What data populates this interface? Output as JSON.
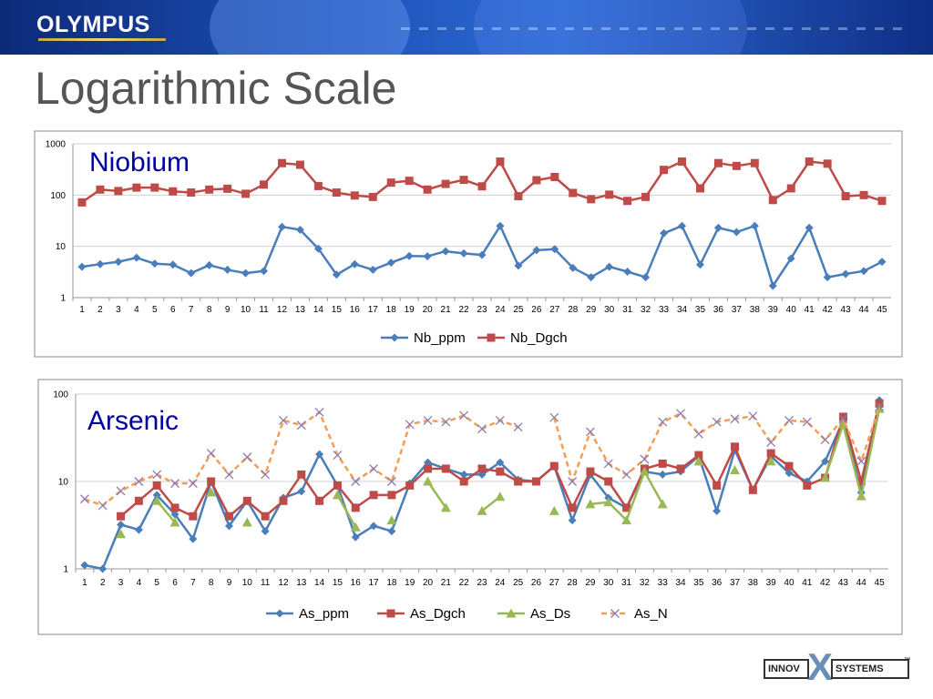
{
  "header": {
    "brand": "OLYMPUS"
  },
  "slide": {
    "title": "Logarithmic Scale"
  },
  "footer": {
    "logo_left": "INNOV",
    "logo_mid": "X",
    "logo_right": "SYSTEMS",
    "trademark": "™"
  },
  "colors": {
    "Nb_ppm": "#4a7ebb",
    "Nb_Dgch": "#be4b48",
    "As_ppm": "#4a7ebb",
    "As_Dgch": "#be4b48",
    "As_Ds": "#98b954",
    "As_N": "#f59d56",
    "As_N_marker": "#8f7bb0"
  },
  "chart_data": [
    {
      "type": "line",
      "label": "Niobium",
      "scale": "log",
      "ylim": [
        1,
        1000
      ],
      "yticks": [
        "1",
        "10",
        "100",
        "1000"
      ],
      "grid": true,
      "legend_position": "bottom",
      "categories": [
        "1",
        "2",
        "3",
        "4",
        "5",
        "6",
        "7",
        "8",
        "9",
        "10",
        "11",
        "12",
        "13",
        "14",
        "15",
        "16",
        "17",
        "18",
        "19",
        "20",
        "21",
        "22",
        "23",
        "24",
        "25",
        "26",
        "27",
        "28",
        "29",
        "30",
        "31",
        "32",
        "33",
        "34",
        "35",
        "36",
        "37",
        "38",
        "39",
        "40",
        "41",
        "42",
        "43",
        "44",
        "45"
      ],
      "series": [
        {
          "name": "Nb_ppm",
          "marker": "diamond",
          "values": [
            4,
            4.5,
            5,
            6,
            4.6,
            4.4,
            3,
            4.3,
            3.5,
            3,
            3.3,
            24,
            21,
            9,
            2.8,
            4.5,
            3.5,
            4.8,
            6.5,
            6.4,
            8,
            7.3,
            6.8,
            25,
            4.2,
            8.4,
            8.8,
            3.8,
            2.5,
            4,
            3.2,
            2.5,
            18,
            25,
            4.4,
            23,
            19,
            25,
            1.7,
            5.8,
            23,
            2.5,
            2.9,
            3.3,
            5
          ]
        },
        {
          "name": "Nb_Dgch",
          "marker": "square",
          "values": [
            72,
            128,
            120,
            140,
            140,
            118,
            112,
            128,
            133,
            106,
            160,
            420,
            390,
            150,
            112,
            98,
            92,
            175,
            190,
            128,
            165,
            198,
            148,
            450,
            95,
            195,
            225,
            110,
            83,
            102,
            77,
            92,
            310,
            450,
            135,
            420,
            370,
            420,
            80,
            135,
            450,
            410,
            95,
            100,
            77
          ]
        }
      ]
    },
    {
      "type": "line",
      "label": "Arsenic",
      "scale": "log",
      "ylim": [
        1,
        100
      ],
      "yticks": [
        "1",
        "10",
        "100"
      ],
      "grid": true,
      "legend_position": "bottom",
      "categories": [
        "1",
        "2",
        "3",
        "4",
        "5",
        "6",
        "7",
        "8",
        "9",
        "10",
        "11",
        "12",
        "13",
        "14",
        "15",
        "16",
        "17",
        "18",
        "19",
        "20",
        "21",
        "22",
        "23",
        "24",
        "25",
        "26",
        "27",
        "28",
        "29",
        "30",
        "31",
        "32",
        "33",
        "34",
        "35",
        "36",
        "37",
        "38",
        "39",
        "40",
        "41",
        "42",
        "43",
        "44",
        "45"
      ],
      "series": [
        {
          "name": "As_ppm",
          "marker": "diamond",
          "values": [
            1.1,
            1.0,
            3.2,
            2.8,
            7,
            4.2,
            2.2,
            10,
            3.1,
            6,
            2.7,
            6.5,
            7.7,
            20.5,
            9,
            2.3,
            3.1,
            2.7,
            9.5,
            16.5,
            14,
            12,
            12,
            16.5,
            10.5,
            10,
            15,
            3.6,
            12,
            6.5,
            5,
            13,
            12,
            13,
            19.5,
            4.6,
            23,
            8,
            19.5,
            12.5,
            10,
            17,
            50,
            7.5,
            85
          ]
        },
        {
          "name": "As_Dgch",
          "marker": "square",
          "values": [
            null,
            null,
            4,
            6,
            9,
            5,
            4,
            10,
            4,
            6,
            4,
            6,
            12,
            6,
            9,
            5,
            7,
            7,
            9,
            14,
            14,
            10,
            14,
            13,
            10,
            10,
            15,
            5,
            13,
            10,
            5,
            14,
            16,
            14,
            20,
            9,
            25,
            8,
            21,
            15,
            9,
            11,
            55,
            10,
            78
          ]
        },
        {
          "name": "As_Ds",
          "marker": "triangle",
          "values": [
            null,
            null,
            2.5,
            null,
            6,
            3.4,
            null,
            7.5,
            null,
            3.4,
            null,
            null,
            null,
            null,
            7,
            3,
            null,
            3.6,
            null,
            10,
            5,
            null,
            4.6,
            6.7,
            null,
            null,
            4.6,
            null,
            5.5,
            5.8,
            3.6,
            13,
            5.5,
            null,
            17,
            null,
            13.5,
            null,
            17,
            null,
            null,
            11,
            45,
            6.8,
            68
          ]
        },
        {
          "name": "As_N",
          "marker": "x",
          "dashed": true,
          "segments": [
            [
              0,
              24
            ],
            [
              26,
              44
            ]
          ],
          "values": [
            6.3,
            5.3,
            7.8,
            10,
            12,
            9.5,
            9.5,
            21,
            12,
            19,
            12,
            50,
            44,
            62,
            20,
            10,
            14,
            10,
            45,
            50,
            48,
            57,
            40,
            50,
            42,
            null,
            54,
            10,
            37,
            16,
            12,
            18,
            48,
            60,
            35,
            48,
            52,
            56,
            28,
            50,
            48,
            30,
            52,
            17,
            72
          ]
        }
      ]
    }
  ]
}
